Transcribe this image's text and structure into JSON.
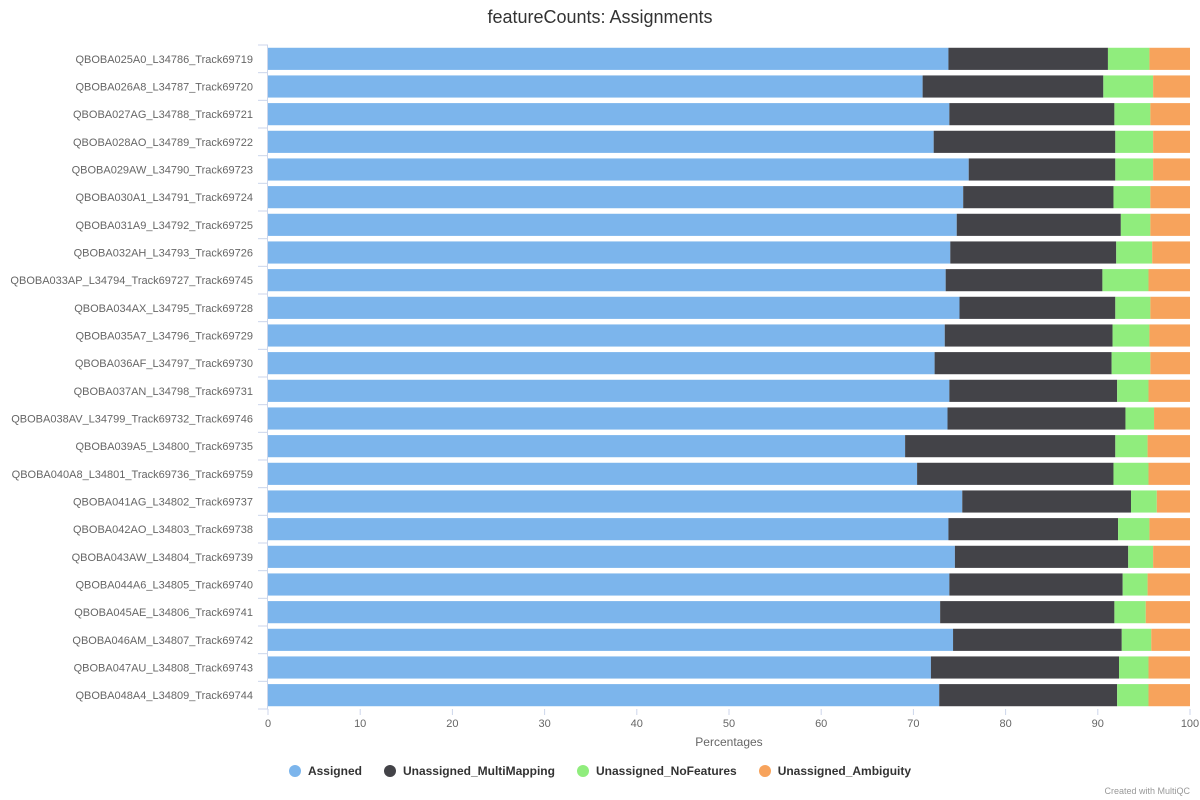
{
  "chart_data": {
    "type": "bar",
    "orientation": "horizontal",
    "stacked": "percent",
    "title": "featureCounts: Assignments",
    "xlabel": "Percentages",
    "ylabel": "",
    "xlim": [
      0,
      100
    ],
    "xticks": [
      "0",
      "10",
      "20",
      "30",
      "40",
      "50",
      "60",
      "70",
      "80",
      "90",
      "100"
    ],
    "legend_position": "bottom-center",
    "grid": false,
    "categories": [
      "QBOBA025A0_L34786_Track69719",
      "QBOBA026A8_L34787_Track69720",
      "QBOBA027AG_L34788_Track69721",
      "QBOBA028AO_L34789_Track69722",
      "QBOBA029AW_L34790_Track69723",
      "QBOBA030A1_L34791_Track69724",
      "QBOBA031A9_L34792_Track69725",
      "QBOBA032AH_L34793_Track69726",
      "QBOBA033AP_L34794_Track69727_Track69745",
      "QBOBA034AX_L34795_Track69728",
      "QBOBA035A7_L34796_Track69729",
      "QBOBA036AF_L34797_Track69730",
      "QBOBA037AN_L34798_Track69731",
      "QBOBA038AV_L34799_Track69732_Track69746",
      "QBOBA039A5_L34800_Track69735",
      "QBOBA040A8_L34801_Track69736_Track69759",
      "QBOBA041AG_L34802_Track69737",
      "QBOBA042AO_L34803_Track69738",
      "QBOBA043AW_L34804_Track69739",
      "QBOBA044A6_L34805_Track69740",
      "QBOBA045AE_L34806_Track69741",
      "QBOBA046AM_L34807_Track69742",
      "QBOBA047AU_L34808_Track69743",
      "QBOBA048A4_L34809_Track69744"
    ],
    "series": [
      {
        "name": "Assigned",
        "color": "#7cb5ec",
        "values": [
          73.8,
          71.0,
          73.9,
          72.2,
          76.0,
          75.4,
          74.7,
          74.0,
          73.5,
          75.0,
          73.4,
          72.3,
          73.9,
          73.7,
          69.1,
          70.4,
          75.3,
          73.8,
          74.5,
          73.9,
          72.9,
          74.3,
          71.9,
          72.8
        ]
      },
      {
        "name": "Unassigned_MultiMapping",
        "color": "#434348",
        "values": [
          17.3,
          19.6,
          17.9,
          19.7,
          15.9,
          16.3,
          17.8,
          18.0,
          17.0,
          16.9,
          18.2,
          19.2,
          18.2,
          19.3,
          22.8,
          21.3,
          18.3,
          18.4,
          18.8,
          18.8,
          18.9,
          18.3,
          20.4,
          19.3
        ]
      },
      {
        "name": "Unassigned_NoFeatures",
        "color": "#90ed7d",
        "values": [
          4.5,
          5.4,
          3.9,
          4.1,
          4.1,
          4.0,
          3.2,
          3.9,
          5.0,
          3.8,
          4.0,
          4.2,
          3.4,
          3.1,
          3.5,
          3.8,
          2.8,
          3.4,
          2.7,
          2.7,
          3.4,
          3.2,
          3.2,
          3.4
        ]
      },
      {
        "name": "Unassigned_Ambiguity",
        "color": "#f7a35c",
        "values": [
          4.4,
          4.0,
          4.3,
          4.0,
          4.0,
          4.3,
          4.3,
          4.1,
          4.5,
          4.3,
          4.4,
          4.3,
          4.5,
          3.9,
          4.6,
          4.5,
          3.6,
          4.4,
          4.0,
          4.6,
          4.8,
          4.2,
          4.5,
          4.5
        ]
      }
    ]
  },
  "credits": "Created with MultiQC"
}
